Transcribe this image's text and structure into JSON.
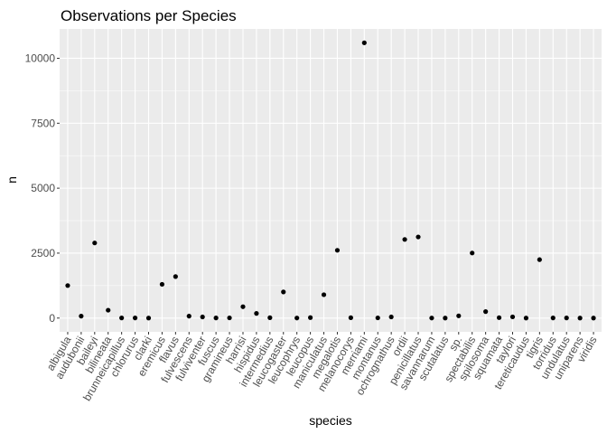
{
  "chart_data": {
    "type": "scatter",
    "title": "Observations per Species",
    "xlabel": "species",
    "ylabel": "n",
    "ylim": [
      -530,
      11130
    ],
    "yticks": [
      0,
      2500,
      5000,
      7500,
      10000
    ],
    "ytick_labels": [
      "0",
      "2500",
      "5000",
      "7500",
      "10000"
    ],
    "grid": true,
    "background": "#ebebeb",
    "point_color": "#000000",
    "categories": [
      "albigula",
      "audubonii",
      "baileyi",
      "bilineata",
      "brunneicapillus",
      "chlorurus",
      "clarki",
      "eremicus",
      "flavus",
      "fulvescens",
      "fulviventer",
      "fuscus",
      "gramineus",
      "harrisi",
      "hispidus",
      "intermedius",
      "leucogaster",
      "leucophrys",
      "leucopus",
      "maniculatus",
      "megalotis",
      "melanocorys",
      "merriami",
      "montanus",
      "ochrognathus",
      "ordii",
      "penicillatus",
      "savannarum",
      "scutalatus",
      "sp.",
      "spectabilis",
      "spilosoma",
      "squamata",
      "taylori",
      "tereticaudus",
      "tigris",
      "torridus",
      "undulatus",
      "uniparens",
      "viridis"
    ],
    "values": [
      1252,
      75,
      2891,
      303,
      5,
      5,
      1,
      1299,
      1597,
      75,
      43,
      5,
      8,
      437,
      179,
      14,
      1006,
      2,
      19,
      899,
      2609,
      13,
      10596,
      8,
      43,
      3027,
      3123,
      2,
      1,
      86,
      2504,
      248,
      16,
      46,
      1,
      2249,
      5,
      5,
      1,
      1
    ]
  }
}
